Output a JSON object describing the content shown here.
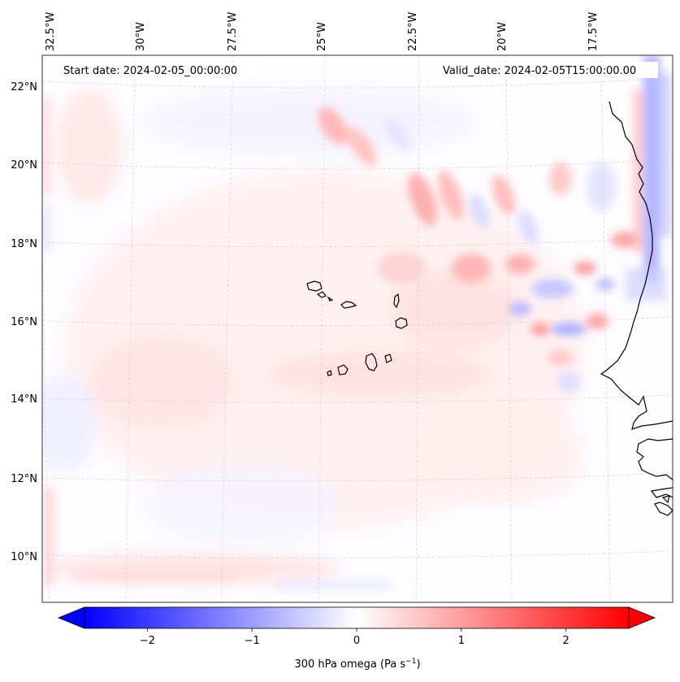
{
  "map": {
    "start_date": "Start date: 2024-02-05_00:00:00",
    "valid_date": "Valid_date: 2024-02-05T15:00:00.00",
    "lon_ticks": [
      "32.5°W",
      "30°W",
      "27.5°W",
      "25°W",
      "22.5°W",
      "20°W",
      "17.5°W"
    ],
    "lat_ticks": [
      "22°N",
      "20°N",
      "18°N",
      "16°N",
      "14°N",
      "12°N",
      "10°N"
    ],
    "region": "Cape Verde and West African coast",
    "colors": {
      "negative": "#0000ff",
      "zero": "#ffffff",
      "positive": "#ff0000",
      "coast": "#000000"
    }
  },
  "colorbar": {
    "ticks": [
      "−2",
      "−1",
      "0",
      "1",
      "2"
    ],
    "tick_values": [
      -2,
      -1,
      0,
      1,
      2
    ],
    "range": [
      -2.6,
      2.6
    ],
    "label_main": "300 hPa omega (Pa s",
    "label_sup": "−1",
    "label_end": ")"
  }
}
